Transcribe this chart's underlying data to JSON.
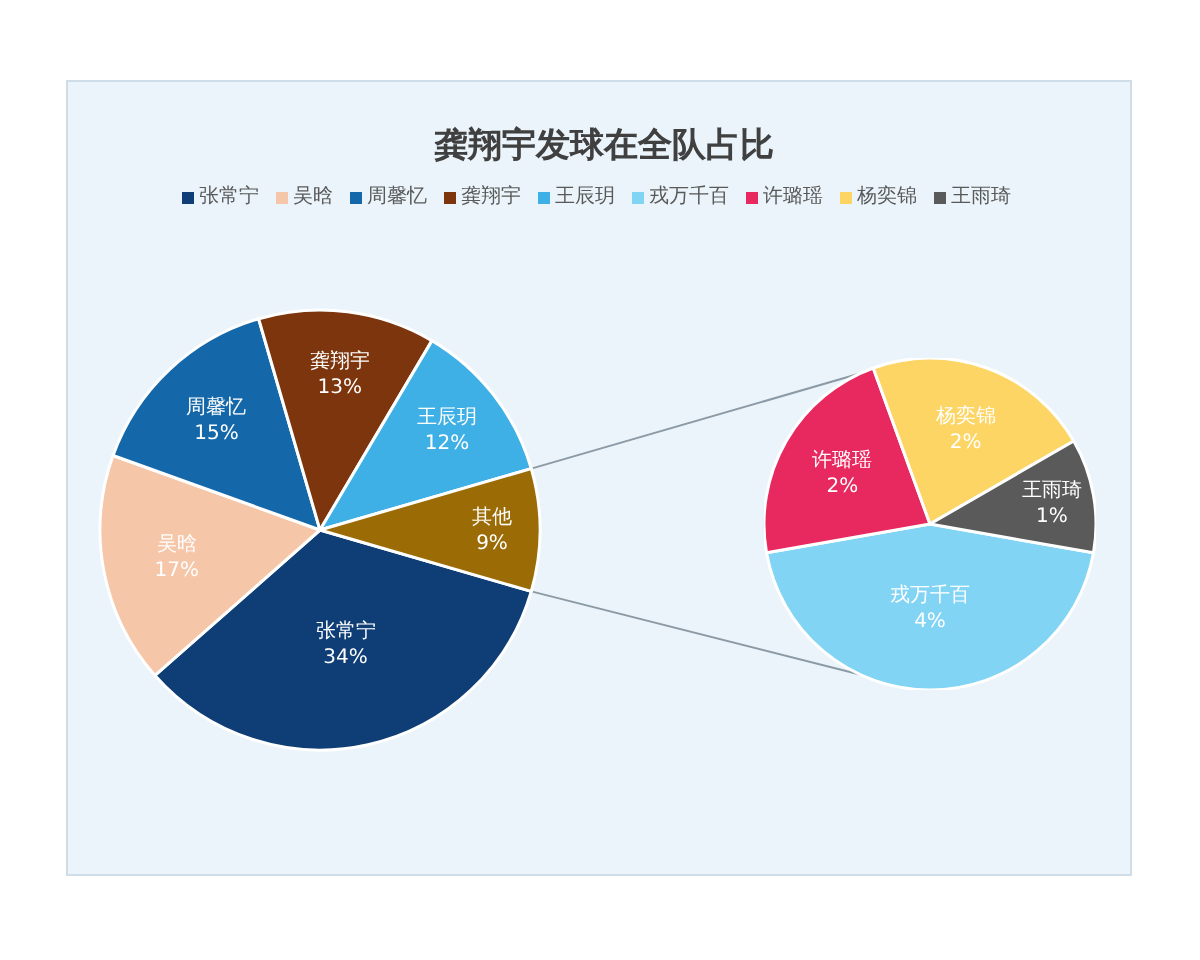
{
  "chart_data": [
    {
      "type": "pie",
      "title": "龚翔宇发球在全队占比",
      "categories": [
        "张常宁",
        "吴晗",
        "周馨忆",
        "龚翔宇",
        "王辰玥",
        "其他"
      ],
      "values": [
        34,
        17,
        15,
        13,
        12,
        9
      ],
      "value_labels": [
        "34%",
        "17%",
        "15%",
        "13%",
        "12%",
        "9%"
      ],
      "colors": [
        "#0e3e75",
        "#f6c6a8",
        "#1468a9",
        "#7c350c",
        "#3eb0e5",
        "#9b6c06"
      ],
      "legend": "top"
    },
    {
      "type": "pie",
      "categories": [
        "戎万千百",
        "许璐瑶",
        "杨奕锦",
        "王雨琦"
      ],
      "values": [
        4,
        2,
        2,
        1
      ],
      "value_labels": [
        "4%",
        "2%",
        "2%",
        "1%"
      ],
      "colors": [
        "#82d4f4",
        "#e8295f",
        "#fdd565",
        "#5a5a5a"
      ],
      "legend": "top"
    }
  ]
}
